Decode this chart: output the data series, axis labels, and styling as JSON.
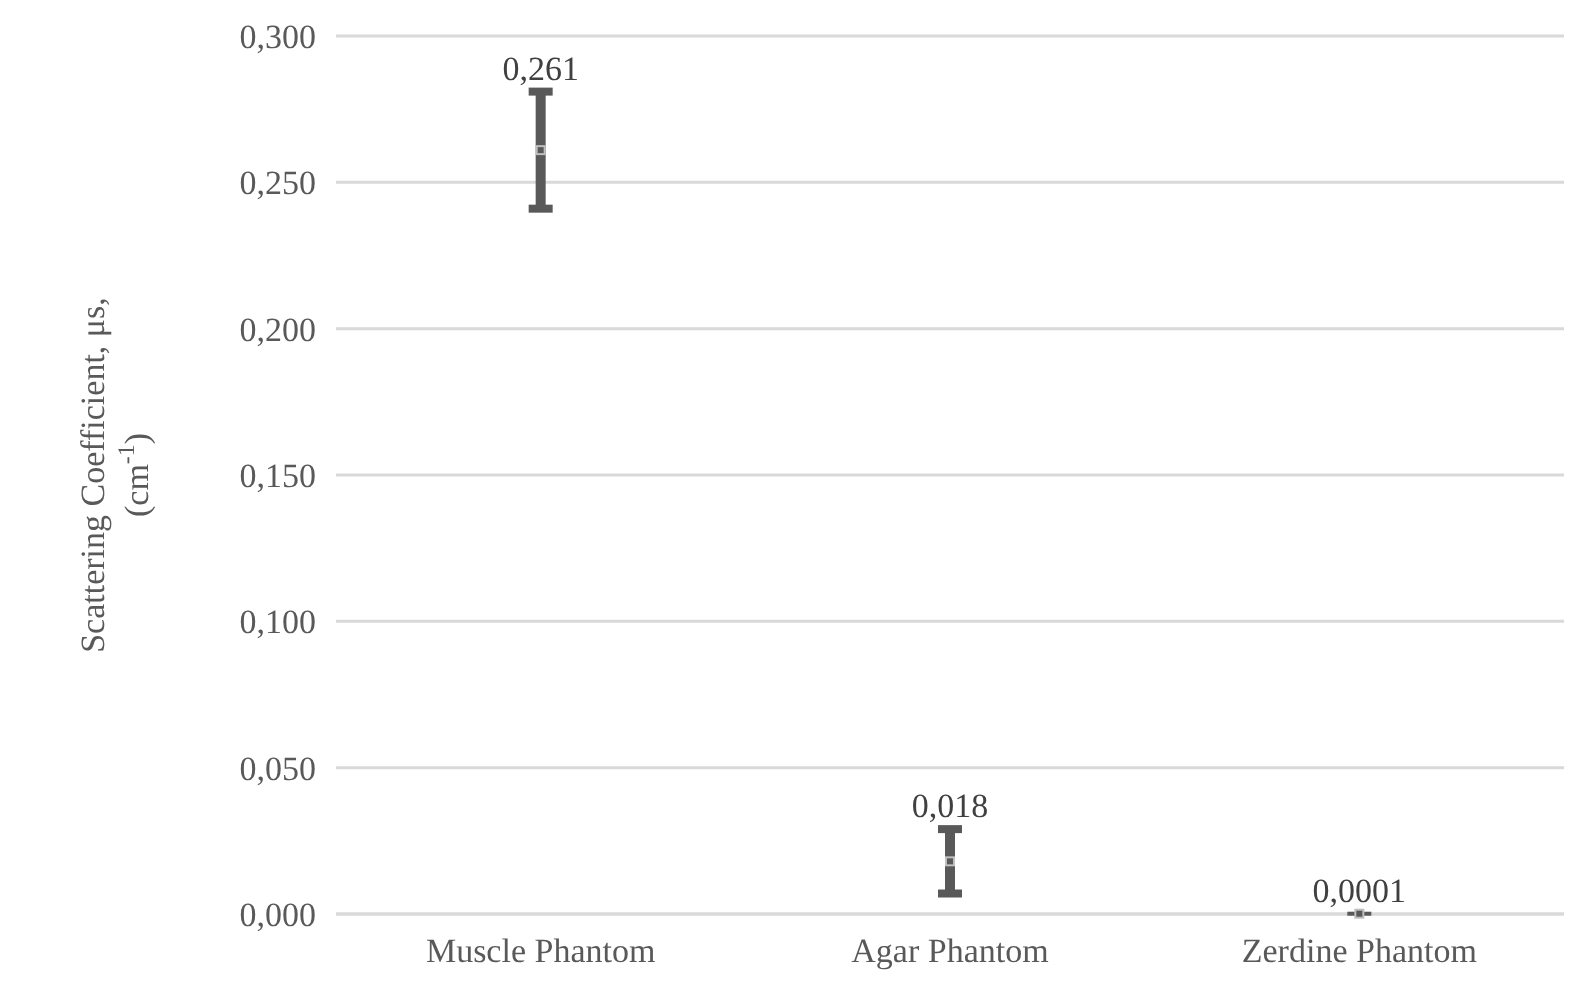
{
  "chart_data": {
    "type": "scatter",
    "ylabel": "Scattering Coefficient, μs,\n(cm$^{-1}$)",
    "categories": [
      "Muscle Phantom",
      "Agar Phantom",
      "Zerdine Phantom"
    ],
    "series": [
      {
        "color": "#595959",
        "values": [
          0.261,
          0.018,
          0.0001
        ],
        "errors": [
          [
            0.241,
            0.281
          ],
          [
            0.007,
            0.029
          ],
          null
        ],
        "value_labels": [
          "0,261",
          "0,018",
          "0,0001"
        ]
      }
    ],
    "ylim": [
      0,
      0.3
    ],
    "yticks": [
      {
        "value": 0,
        "label": "0,000"
      },
      {
        "value": 0.05,
        "label": "0,050"
      },
      {
        "value": 0.1,
        "label": "0,100"
      },
      {
        "value": 0.15,
        "label": "0,150"
      },
      {
        "value": 0.2,
        "label": "0,200"
      },
      {
        "value": 0.25,
        "label": "0,250"
      },
      {
        "value": 0.3,
        "label": "0,300"
      }
    ],
    "grid": "y",
    "marker": "square"
  }
}
